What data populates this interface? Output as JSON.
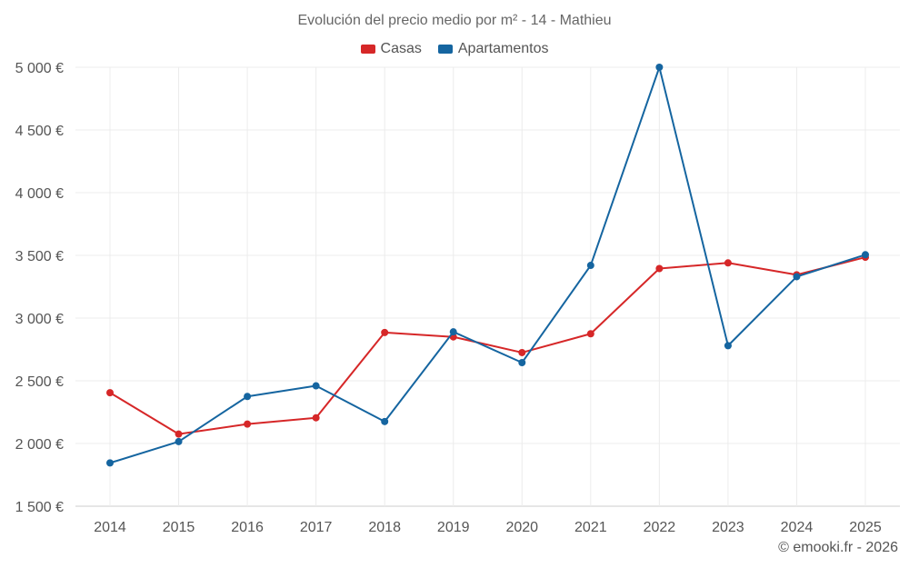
{
  "chart_data": {
    "type": "line",
    "title": "Evolución del precio medio por m² - 14 - Mathieu",
    "categories": [
      "2014",
      "2015",
      "2016",
      "2017",
      "2018",
      "2019",
      "2020",
      "2021",
      "2022",
      "2023",
      "2024",
      "2025"
    ],
    "series": [
      {
        "name": "Casas",
        "color": "#d62728",
        "values": [
          2405,
          2075,
          2155,
          2205,
          2885,
          2850,
          2725,
          2875,
          3395,
          3440,
          3345,
          3485
        ]
      },
      {
        "name": "Apartamentos",
        "color": "#1565a0",
        "values": [
          1845,
          2015,
          2375,
          2460,
          2175,
          2890,
          2645,
          3420,
          5000,
          2780,
          3330,
          3505
        ]
      }
    ],
    "ylim": [
      1500,
      5000
    ],
    "yticks": [
      1500,
      2000,
      2500,
      3000,
      3500,
      4000,
      4500,
      5000
    ],
    "ytick_labels": [
      "1 500 €",
      "2 000 €",
      "2 500 €",
      "3 000 €",
      "3 500 €",
      "4 000 €",
      "4 500 €",
      "5 000 €"
    ],
    "xlabel": "",
    "ylabel": "",
    "grid": true,
    "legend_position": "top-center"
  },
  "legend": {
    "casas_label": "Casas",
    "casas_color": "#d62728",
    "apartamentos_label": "Apartamentos",
    "apartamentos_color": "#1565a0"
  },
  "credit": "© emooki.fr - 2026"
}
